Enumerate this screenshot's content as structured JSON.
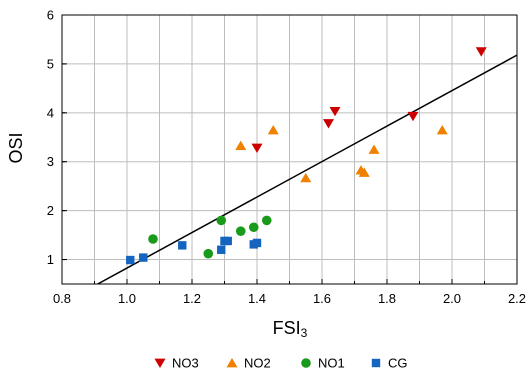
{
  "chart_data": {
    "type": "scatter",
    "title": "",
    "xlabel": "FSI",
    "xlabel_sub": "3",
    "ylabel": "OSI",
    "xlim": [
      0.8,
      2.2
    ],
    "ylim": [
      0.5,
      6
    ],
    "x_ticks": [
      0.8,
      1.0,
      1.2,
      1.4,
      1.6,
      1.8,
      2.0,
      2.2
    ],
    "x_tick_labels": [
      "0.8",
      "1.0",
      "1.2",
      "1.4",
      "1.6",
      "1.8",
      "2.0",
      "2.2"
    ],
    "y_ticks": [
      1,
      2,
      3,
      4,
      5,
      6
    ],
    "y_tick_labels": [
      "1",
      "2",
      "3",
      "4",
      "5",
      "6"
    ],
    "grid": true,
    "legend_position": "bottom",
    "series": [
      {
        "name": "NO3",
        "marker": "triangle-down",
        "color": "#cc0000",
        "points": [
          [
            1.4,
            3.28
          ],
          [
            1.62,
            3.78
          ],
          [
            1.64,
            4.03
          ],
          [
            1.88,
            3.93
          ],
          [
            2.09,
            5.25
          ]
        ]
      },
      {
        "name": "NO2",
        "marker": "triangle-up",
        "color": "#f08000",
        "points": [
          [
            1.35,
            3.33
          ],
          [
            1.45,
            3.65
          ],
          [
            1.55,
            2.67
          ],
          [
            1.72,
            2.83
          ],
          [
            1.73,
            2.78
          ],
          [
            1.76,
            3.25
          ],
          [
            1.97,
            3.65
          ]
        ]
      },
      {
        "name": "NO1",
        "marker": "circle",
        "color": "#1a9a1a",
        "points": [
          [
            1.08,
            1.42
          ],
          [
            1.25,
            1.12
          ],
          [
            1.29,
            1.8
          ],
          [
            1.35,
            1.58
          ],
          [
            1.39,
            1.66
          ],
          [
            1.43,
            1.8
          ]
        ]
      },
      {
        "name": "CG",
        "marker": "square",
        "color": "#1565c0",
        "points": [
          [
            1.01,
            0.99
          ],
          [
            1.05,
            1.04
          ],
          [
            1.17,
            1.29
          ],
          [
            1.29,
            1.2
          ],
          [
            1.3,
            1.38
          ],
          [
            1.31,
            1.38
          ],
          [
            1.39,
            1.31
          ],
          [
            1.4,
            1.34
          ]
        ]
      }
    ],
    "fit_line": {
      "color": "#000000",
      "points": [
        [
          0.91,
          0.5
        ],
        [
          2.2,
          5.18
        ]
      ]
    }
  }
}
